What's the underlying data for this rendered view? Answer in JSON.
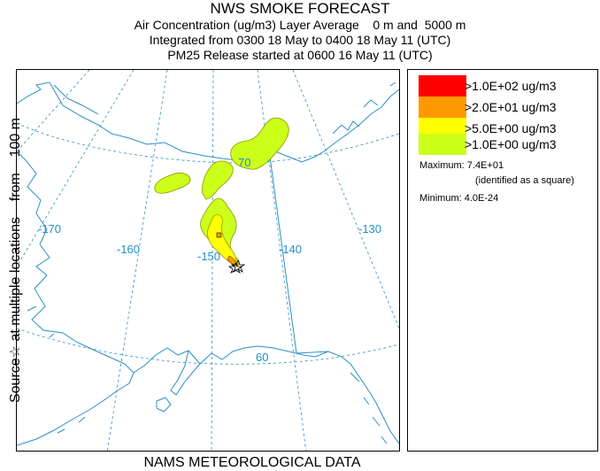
{
  "header": {
    "title": "NWS SMOKE FORECAST",
    "line1": "Air Concentration (ug/m3) Layer Average    0 m and  5000 m",
    "line2": "Integrated from 0300 18 May to 0400 18 May 11 (UTC)",
    "line3": "PM25 Release started at 0600 16 May 11 (UTC)"
  },
  "side_label": "Source☆ at multiple locations    from    100 m",
  "footer": "NAMS METEOROLOGICAL DATA",
  "map": {
    "longitude_labels": [
      "-170",
      "-160",
      "-150",
      "-140",
      "-130"
    ],
    "latitude_labels": [
      "70",
      "60"
    ],
    "colors": {
      "grid": "#2a8fc8",
      "coast": "#2a8fc8",
      "level4": "#ff1a00",
      "level3": "#ff9900",
      "level2": "#ffff00",
      "level1": "#ccff1a"
    }
  },
  "legend": {
    "items": [
      {
        "label": ">1.0E+02 ug/m3",
        "color": "#ff0000"
      },
      {
        "label": ">2.0E+01 ug/m3",
        "color": "#ff9900"
      },
      {
        "label": ">5.0E+00 ug/m3",
        "color": "#ffff00"
      },
      {
        "label": ">1.0E+00 ug/m3",
        "color": "#ccff1a"
      }
    ],
    "maximum_label": "Maximum: 7.4E+01",
    "maximum_note": "(identified as a square)",
    "minimum_label": "Minimum: 4.0E-24"
  }
}
